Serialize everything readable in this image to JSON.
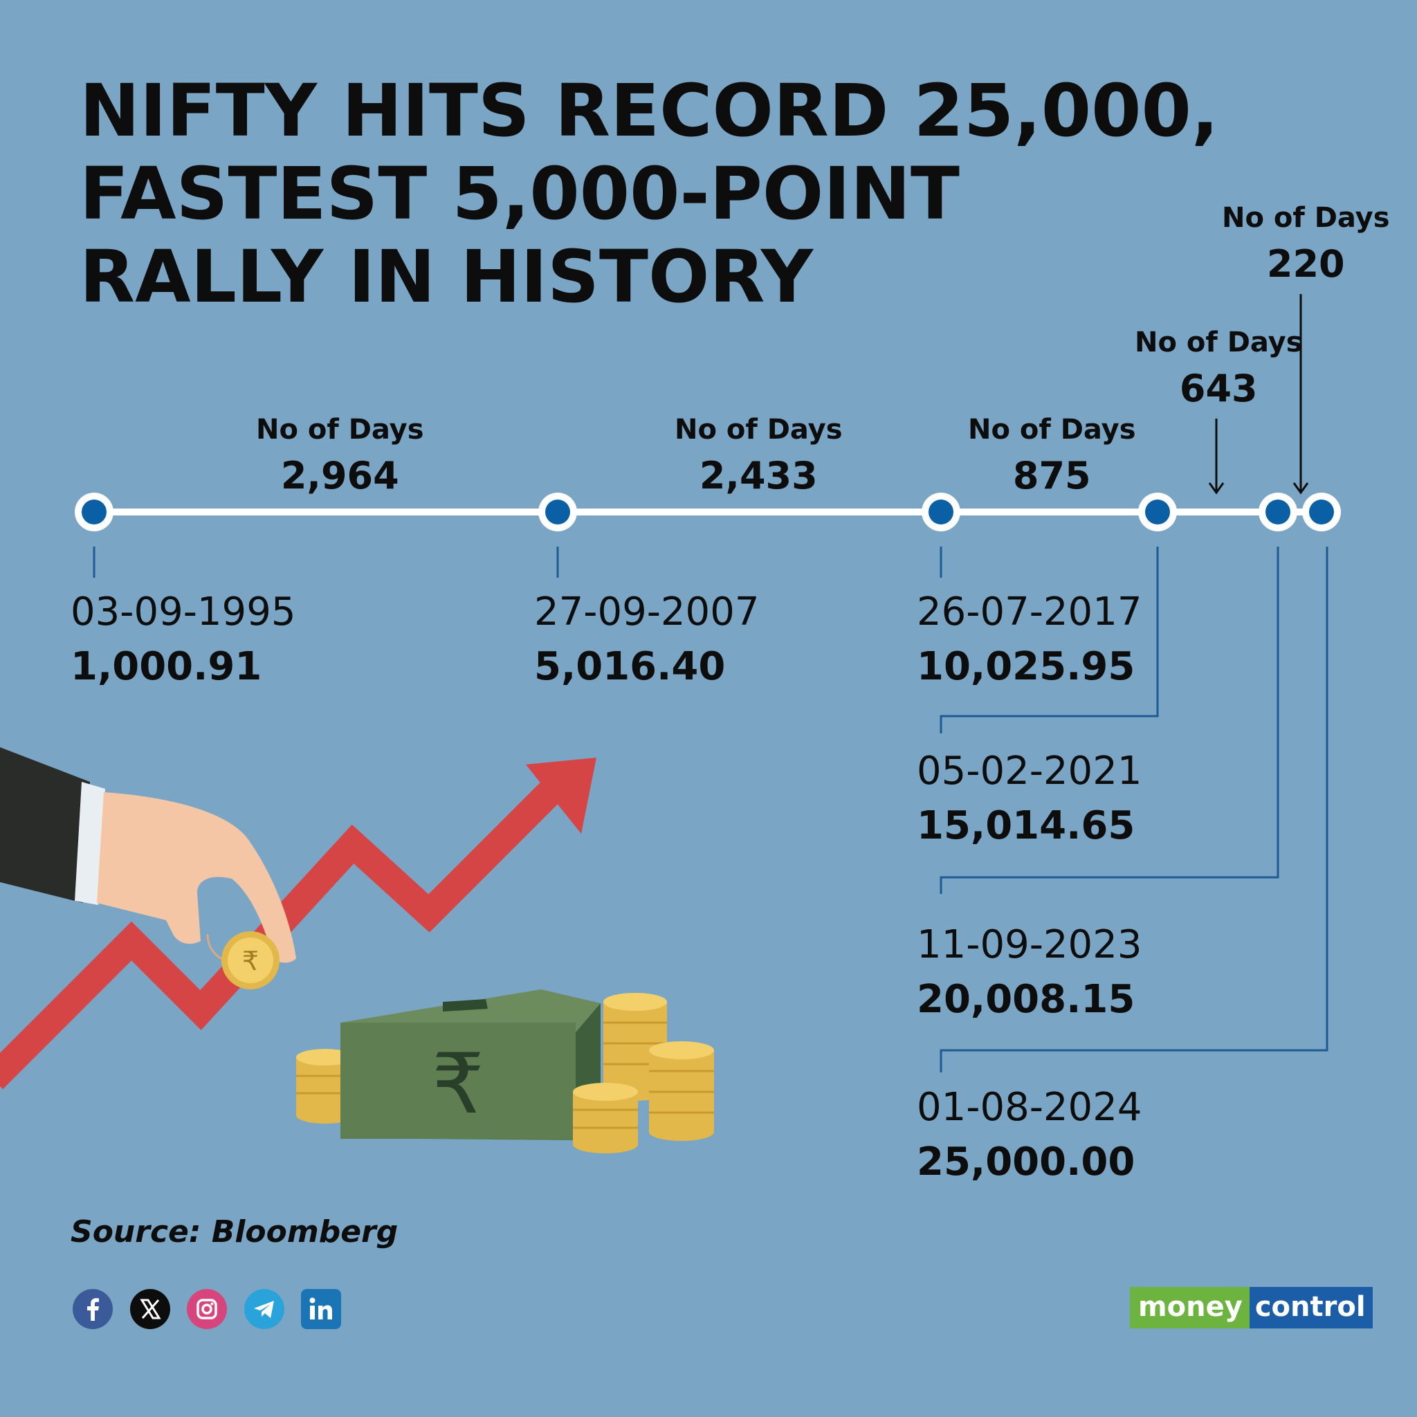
{
  "title": {
    "line1": "NIFTY HITS RECORD 25,000,",
    "line2": "FASTEST 5,000-POINT",
    "line3": "RALLY IN HISTORY"
  },
  "timeline": {
    "points": [
      {
        "date": "03-09-1995",
        "value": "1,000.91"
      },
      {
        "date": "27-09-2007",
        "value": "5,016.40"
      },
      {
        "date": "26-07-2017",
        "value": "10,025.95"
      },
      {
        "date": "05-02-2021",
        "value": "15,014.65"
      },
      {
        "date": "11-09-2023",
        "value": "20,008.15"
      },
      {
        "date": "01-08-2024",
        "value": "25,000.00"
      }
    ],
    "intervals": [
      {
        "label": "No of Days",
        "days": "2,964"
      },
      {
        "label": "No of Days",
        "days": "2,433"
      },
      {
        "label": "No of Days",
        "days": "875"
      },
      {
        "label": "No of Days",
        "days": "643"
      },
      {
        "label": "No of Days",
        "days": "220"
      }
    ]
  },
  "illustration": {
    "rupee_symbol": "₹"
  },
  "footer": {
    "source": "Source: Bloomberg",
    "social_icons": [
      "facebook-icon",
      "x-icon",
      "instagram-icon",
      "telegram-icon",
      "linkedin-icon"
    ],
    "logo_part1": "money",
    "logo_part2": "control"
  },
  "colors": {
    "background": "#7aa5c4",
    "timeline_line": "#ffffff",
    "node_fill": "#0b5fa5",
    "connector": "#1f5a94",
    "arrow": "#d64545"
  }
}
